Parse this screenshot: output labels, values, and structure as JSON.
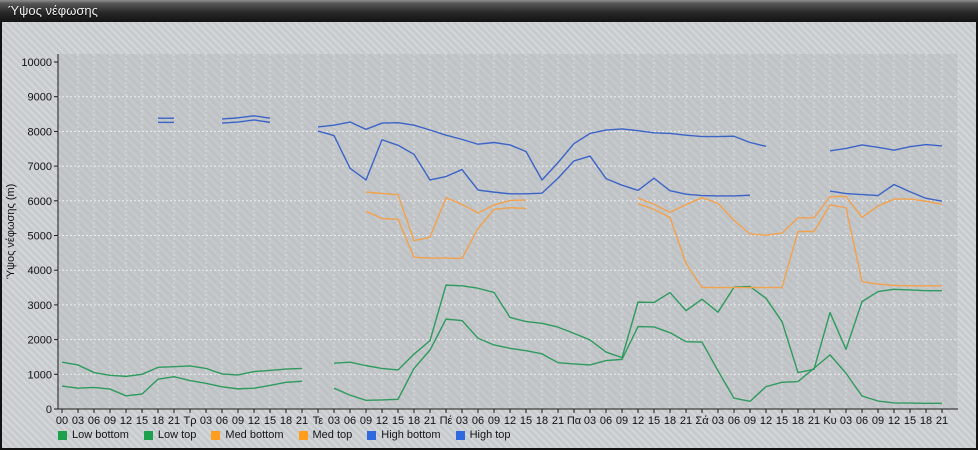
{
  "window": {
    "title": "Ύψος νέφωσης"
  },
  "chart_data": {
    "type": "line",
    "title": "Ύψος νέφωσης",
    "ylabel": "Ύψος νέφωσης (m)",
    "ylim": [
      0,
      10000
    ],
    "ytick_step": 1000,
    "grid": true,
    "legend_position": "bottom-left",
    "x_labels": [
      "00",
      "03",
      "06",
      "09",
      "12",
      "15",
      "18",
      "21",
      "Τρ",
      "03",
      "06",
      "09",
      "12",
      "15",
      "18",
      "21",
      "Τε",
      "03",
      "06",
      "09",
      "12",
      "15",
      "18",
      "21",
      "Πέ",
      "03",
      "06",
      "09",
      "12",
      "15",
      "18",
      "21",
      "Πα",
      "03",
      "06",
      "09",
      "12",
      "15",
      "18",
      "21",
      "Σά",
      "03",
      "06",
      "09",
      "12",
      "15",
      "18",
      "21",
      "Κυ",
      "03",
      "06",
      "09",
      "12",
      "15",
      "18",
      "21"
    ],
    "series": [
      {
        "name": "Low bottom",
        "color": "#2F9A5E",
        "swatch": "#1FA04C",
        "segments": [
          {
            "start": 0,
            "values": [
              660,
              600,
              620,
              575,
              380,
              430,
              860,
              930,
              820,
              740,
              640,
              580,
              600,
              680,
              770,
              800
            ]
          },
          {
            "start": 17,
            "values": [
              600,
              400,
              250,
              260,
              280,
              1170,
              1700,
              2590,
              2550,
              2040,
              1845,
              1750,
              1680,
              1590,
              1335,
              1300,
              1270,
              1395,
              1430,
              2375,
              2365,
              2200,
              1940,
              1930,
              1100,
              310,
              220,
              645,
              770,
              790,
              1175,
              1560,
              1030,
              375,
              230,
              175,
              170,
              165,
              165
            ]
          }
        ]
      },
      {
        "name": "Low top",
        "color": "#2F9A5E",
        "swatch": "#1FA04C",
        "segments": [
          {
            "start": 0,
            "values": [
              1350,
              1270,
              1050,
              970,
              940,
              1000,
              1200,
              1220,
              1240,
              1170,
              1010,
              980,
              1080,
              1110,
              1150,
              1170
            ]
          },
          {
            "start": 17,
            "values": [
              1320,
              1350,
              1250,
              1170,
              1125,
              1580,
              1970,
              3570,
              3550,
              3480,
              3360,
              2640,
              2520,
              2470,
              2360,
              2180,
              1990,
              1640,
              1480,
              3080,
              3070,
              3355,
              2835,
              3165,
              2790,
              3510,
              3530,
              3190,
              2520,
              1050,
              1145,
              2780,
              1720,
              3095,
              3385,
              3450,
              3430,
              3410,
              3410
            ]
          }
        ]
      },
      {
        "name": "Med bottom",
        "color": "#F2A14C",
        "swatch": "#FF9D1F",
        "segments": [
          {
            "start": 19,
            "values": [
              5700,
              5490,
              5470,
              4370,
              4350,
              4350,
              4340,
              5200,
              5750,
              5800,
              5780
            ]
          },
          {
            "start": 36,
            "values": [
              5920,
              5750,
              5520,
              4200,
              3500,
              3500,
              3500,
              3500,
              3500,
              3500,
              5115,
              5115,
              5880,
              5800,
              3670,
              3600,
              3560,
              3550,
              3550,
              3550
            ]
          }
        ]
      },
      {
        "name": "Med top",
        "color": "#F2A14C",
        "swatch": "#FF9D1F",
        "segments": [
          {
            "start": 19,
            "values": [
              6250,
              6210,
              6180,
              4850,
              4950,
              6090,
              5900,
              5650,
              5880,
              6010,
              6020
            ]
          },
          {
            "start": 36,
            "values": [
              6080,
              5900,
              5670,
              5890,
              6090,
              5930,
              5440,
              5040,
              5010,
              5070,
              5510,
              5510,
              6120,
              6130,
              5520,
              5850,
              6050,
              6050,
              5990,
              5900
            ]
          }
        ]
      },
      {
        "name": "High bottom",
        "color": "#3C63C8",
        "swatch": "#2E6ADE",
        "segments": [
          {
            "start": 6,
            "values": [
              8260,
              8260
            ]
          },
          {
            "start": 10,
            "values": [
              8240,
              8270,
              8330,
              8260
            ]
          },
          {
            "start": 16,
            "values": [
              8010,
              7880,
              6940,
              6600,
              7760,
              7600,
              7340,
              6600,
              6700,
              6900,
              6310,
              6250,
              6200,
              6200,
              6220,
              6650,
              7150,
              7290,
              6640,
              6450,
              6300,
              6650,
              6290,
              6190,
              6150,
              6140,
              6140,
              6160
            ]
          },
          {
            "start": 48,
            "values": [
              6280,
              6210,
              6180,
              6150,
              6470,
              6260,
              6070,
              5990
            ]
          }
        ]
      },
      {
        "name": "High top",
        "color": "#3C63C8",
        "swatch": "#2E6ADE",
        "segments": [
          {
            "start": 6,
            "values": [
              8380,
              8380
            ]
          },
          {
            "start": 10,
            "values": [
              8360,
              8390,
              8450,
              8380
            ]
          },
          {
            "start": 16,
            "values": [
              8130,
              8180,
              8270,
              8060,
              8240,
              8250,
              8180,
              8040,
              7890,
              7770,
              7630,
              7680,
              7610,
              7420,
              6600,
              7100,
              7650,
              7940,
              8040,
              8070,
              8020,
              7960,
              7940,
              7890,
              7850,
              7850,
              7860,
              7680,
              7570
            ]
          },
          {
            "start": 48,
            "values": [
              7440,
              7510,
              7610,
              7540,
              7460,
              7560,
              7620,
              7580
            ]
          }
        ]
      }
    ]
  }
}
